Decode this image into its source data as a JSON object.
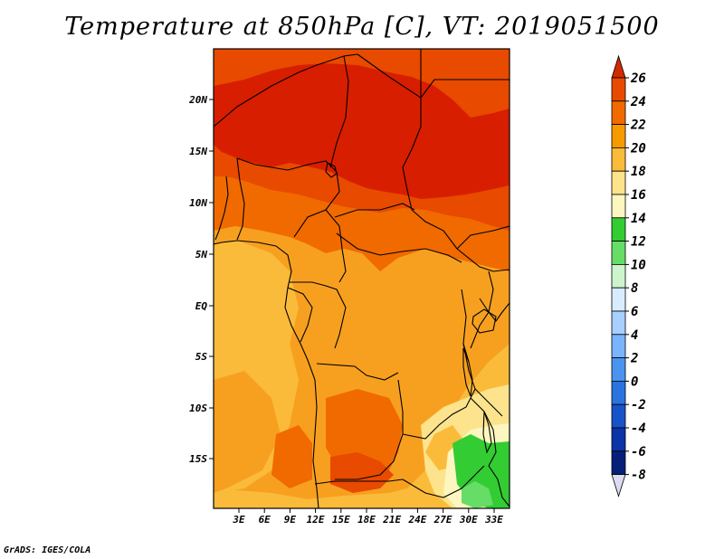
{
  "title": "Temperature at 850hPa [C], VT: 2019051500",
  "credit": "GrADS: IGES/COLA",
  "lat_labels": [
    "20N",
    "15N",
    "10N",
    "5N",
    "EQ",
    "5S",
    "10S",
    "15S"
  ],
  "lon_labels": [
    "3E",
    "6E",
    "9E",
    "12E",
    "15E",
    "18E",
    "21E",
    "24E",
    "27E",
    "30E",
    "33E"
  ],
  "colorbar": {
    "levels": [
      "26",
      "24",
      "22",
      "20",
      "18",
      "16",
      "14",
      "12",
      "10",
      "8",
      "6",
      "4",
      "2",
      "0",
      "-2",
      "-4",
      "-6",
      "-8"
    ],
    "colors": [
      "#d22a00",
      "#e84a00",
      "#f06a00",
      "#f79a00",
      "#fbbb3a",
      "#fce38c",
      "#fdf6c0",
      "#33cc33",
      "#66dd66",
      "#ccf5cc",
      "#d9ecff",
      "#a8d0ff",
      "#7ab4ff",
      "#4a94f0",
      "#2a74e0",
      "#1654c8",
      "#0a34a8",
      "#06207a",
      "#dcdcf0"
    ]
  },
  "map_colors": {
    "c26": "#d81e00",
    "c24": "#e84a00",
    "c22": "#f06a00",
    "c20": "#f7a020",
    "c18": "#fbbb3a",
    "c16": "#fce38c",
    "c14": "#fdf6c0",
    "c12": "#33cc33",
    "c10": "#66dd66",
    "border": "#000000"
  },
  "chart_data": {
    "type": "heatmap",
    "title": "Temperature at 850hPa [C], VT: 2019051500",
    "variable": "Temperature at 850hPa",
    "units": "C",
    "valid_time": "2019051500",
    "lon_range_deg": [
      0,
      34
    ],
    "lat_range_deg": [
      -20,
      24
    ],
    "contour_levels": [
      26,
      24,
      22,
      20,
      18,
      16,
      14,
      12,
      10,
      8,
      6,
      4,
      2,
      0,
      -2,
      -4,
      -6,
      -8
    ]
  }
}
